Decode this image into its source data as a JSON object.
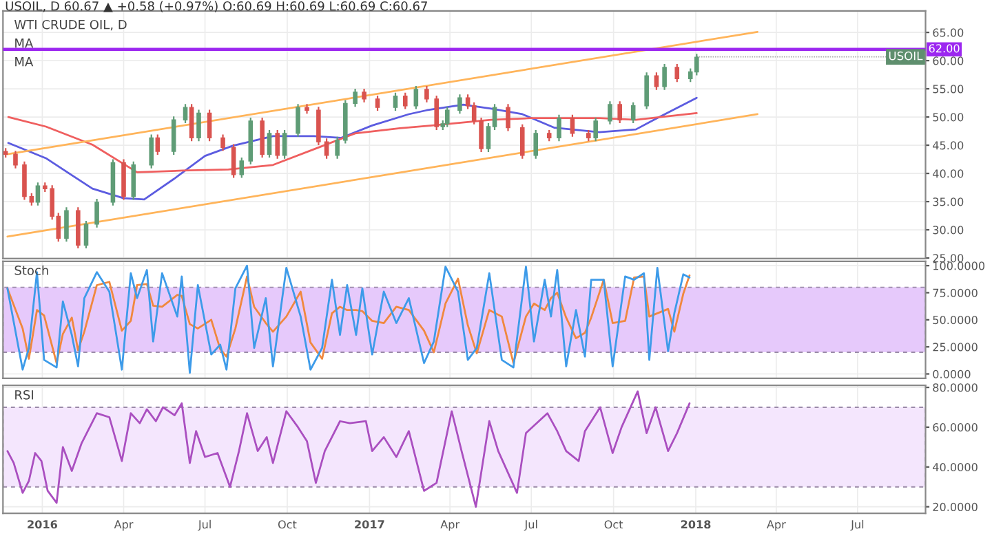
{
  "chart_data": [
    {
      "type": "candlestick",
      "title": "WTI CRUDE OIL, D",
      "subtitle": "USOIL, D 60.67 ▲ +0.58 (+0.97%) O:60.69 H:60.69 L:60.69 C:60.67",
      "grid": true,
      "tick_labels": "y",
      "colors": [
        "#d9534f",
        "#d9534f",
        "#d9534f",
        "#d9534f",
        "#5f9c76",
        "#d9534f",
        "#d9534f",
        "#d9534f",
        "#5f9c76",
        "#d9534f",
        "#5f9c76",
        "#5f9c76",
        "#5f9c76",
        "#d9534f",
        "#5f9c76",
        "#5f9c76",
        "#d9534f",
        "#5f9c76",
        "#5f9c76",
        "#d9534f",
        "#5f9c76",
        "#d9534f",
        "#d9534f",
        "#d9534f",
        "#5f9c76",
        "#5f9c76",
        "#d9534f",
        "#5f9c76",
        "#d9534f",
        "#5f9c76",
        "#5f9c76",
        "#d9534f",
        "#d9534f",
        "#d9534f",
        "#5f9c76",
        "#5f9c76",
        "#5f9c76",
        "#d9534f",
        "#d9534f",
        "#5f9c76",
        "#d9534f",
        "#5f9c76",
        "#d9534f",
        "#d9534f",
        "#5f9c76",
        "#5f9c76",
        "#5f9c76",
        "#d9534f",
        "#d9534f",
        "#d9534f",
        "#5f9c76",
        "#5f9c76",
        "#d9534f",
        "#d9534f",
        "#5f9c76",
        "#d9534f",
        "#5f9c76",
        "#d9534f",
        "#d9534f",
        "#5f9c76",
        "#5f9c76",
        "#d9534f",
        "#5f9c76",
        "#5f9c76",
        "#d9534f",
        "#5f9c76",
        "#d9534f",
        "#5f9c76",
        "#5f9c76"
      ],
      "xlim": [
        "2015-11-18",
        "2018-09-15"
      ],
      "xticks": [
        {
          "value": "2016-01-01",
          "label": null
        },
        {
          "value": "2016-04-01",
          "label": null
        },
        {
          "value": "2016-07-01",
          "label": null
        },
        {
          "value": "2016-10-01",
          "label": null
        },
        {
          "value": "2017-01-01",
          "label": null
        },
        {
          "value": "2017-04-01",
          "label": null
        },
        {
          "value": "2017-07-01",
          "label": null
        },
        {
          "value": "2017-10-01",
          "label": null
        },
        {
          "value": "2018-01-01",
          "label": null
        },
        {
          "value": "2018-04-01",
          "label": null
        },
        {
          "value": "2018-07-01",
          "label": null
        }
      ],
      "ylim": [
        24.9,
        68.8
      ],
      "yticks": [
        {
          "value": 25,
          "label": "25.00"
        },
        {
          "value": 30,
          "label": "30.00"
        },
        {
          "value": 35,
          "label": "35.00"
        },
        {
          "value": 40,
          "label": "40.00"
        },
        {
          "value": 45,
          "label": "45.00"
        },
        {
          "value": 50,
          "label": "50.00"
        },
        {
          "value": 55,
          "label": "55.00"
        },
        {
          "value": 60,
          "label": "60.00"
        },
        {
          "value": 65,
          "label": "65.00"
        }
      ],
      "x": [
        "2015-11-21",
        "2015-12-02",
        "2015-12-12",
        "2015-12-20",
        "2015-12-27",
        "2016-01-04",
        "2016-01-12",
        "2016-01-19",
        "2016-01-28",
        "2016-02-10",
        "2016-02-19",
        "2016-03-02",
        "2016-03-20",
        "2016-04-01",
        "2016-04-12",
        "2016-05-02",
        "2016-05-09",
        "2016-05-27",
        "2016-06-09",
        "2016-06-16",
        "2016-06-24",
        "2016-07-06",
        "2016-07-21",
        "2016-08-02",
        "2016-08-11",
        "2016-08-21",
        "2016-09-03",
        "2016-09-11",
        "2016-09-20",
        "2016-09-28",
        "2016-10-13",
        "2016-10-23",
        "2016-11-05",
        "2016-11-14",
        "2016-11-26",
        "2016-12-05",
        "2016-12-16",
        "2016-12-26",
        "2017-01-10",
        "2017-01-30",
        "2017-02-10",
        "2017-02-22",
        "2017-03-06",
        "2017-03-17",
        "2017-03-24",
        "2017-03-29",
        "2017-04-12",
        "2017-04-21",
        "2017-04-28",
        "2017-05-06",
        "2017-05-14",
        "2017-05-21",
        "2017-06-05",
        "2017-06-21",
        "2017-07-06",
        "2017-07-21",
        "2017-08-01",
        "2017-08-16",
        "2017-09-03",
        "2017-09-11",
        "2017-09-27",
        "2017-10-08",
        "2017-10-23",
        "2017-11-07",
        "2017-11-18",
        "2017-11-27",
        "2017-12-11",
        "2017-12-26",
        "2018-01-02"
      ],
      "ohlc": [
        [
          43.9,
          44.5,
          42.8,
          43.4
        ],
        [
          43.4,
          44.0,
          40.9,
          41.5
        ],
        [
          41.5,
          42.1,
          35.3,
          35.9
        ],
        [
          35.9,
          36.5,
          34.3,
          34.9
        ],
        [
          34.9,
          38.4,
          34.3,
          37.8
        ],
        [
          37.8,
          38.4,
          36.7,
          37.3
        ],
        [
          37.3,
          37.9,
          31.8,
          32.4
        ],
        [
          32.4,
          33.0,
          27.9,
          28.5
        ],
        [
          28.5,
          34.0,
          27.9,
          33.4
        ],
        [
          33.4,
          34.0,
          26.7,
          27.3
        ],
        [
          27.3,
          31.6,
          26.7,
          31.0
        ],
        [
          31.0,
          35.5,
          30.4,
          34.9
        ],
        [
          34.9,
          42.5,
          34.3,
          41.9
        ],
        [
          41.9,
          42.5,
          35.3,
          35.9
        ],
        [
          35.9,
          42.1,
          35.3,
          41.5
        ],
        [
          41.5,
          46.9,
          40.9,
          46.3
        ],
        [
          46.3,
          46.9,
          43.3,
          43.9
        ],
        [
          43.9,
          50.1,
          43.3,
          49.5
        ],
        [
          49.5,
          52.3,
          48.9,
          51.7
        ],
        [
          51.7,
          52.3,
          45.7,
          46.3
        ],
        [
          46.3,
          51.3,
          45.7,
          50.7
        ],
        [
          50.7,
          51.3,
          45.7,
          46.3
        ],
        [
          46.3,
          46.9,
          44.0,
          44.6
        ],
        [
          44.6,
          45.2,
          39.2,
          39.8
        ],
        [
          39.8,
          42.8,
          39.2,
          42.2
        ],
        [
          42.2,
          49.9,
          41.6,
          49.3
        ],
        [
          49.3,
          49.9,
          42.8,
          43.4
        ],
        [
          43.4,
          47.7,
          42.8,
          47.1
        ],
        [
          47.1,
          47.7,
          42.6,
          43.2
        ],
        [
          43.2,
          47.7,
          42.6,
          47.1
        ],
        [
          47.1,
          52.3,
          46.5,
          51.7
        ],
        [
          51.7,
          52.3,
          50.6,
          51.2
        ],
        [
          51.2,
          51.8,
          45.0,
          45.6
        ],
        [
          45.6,
          46.2,
          42.6,
          43.2
        ],
        [
          43.2,
          46.5,
          42.6,
          45.9
        ],
        [
          45.9,
          53.0,
          45.3,
          52.4
        ],
        [
          52.4,
          55.0,
          51.8,
          54.4
        ],
        [
          54.4,
          55.0,
          52.6,
          53.2
        ],
        [
          53.2,
          53.8,
          51.1,
          51.7
        ],
        [
          51.7,
          54.3,
          51.1,
          53.7
        ],
        [
          53.7,
          54.3,
          51.4,
          52.0
        ],
        [
          52.0,
          55.5,
          51.4,
          54.9
        ],
        [
          54.9,
          55.5,
          52.6,
          53.2
        ],
        [
          53.2,
          53.8,
          47.7,
          48.3
        ],
        [
          48.3,
          49.4,
          47.7,
          48.8
        ],
        [
          48.8,
          51.8,
          48.2,
          51.2
        ],
        [
          51.2,
          54.0,
          50.6,
          53.4
        ],
        [
          53.4,
          54.0,
          51.4,
          52.0
        ],
        [
          52.0,
          52.6,
          48.7,
          49.3
        ],
        [
          49.3,
          49.9,
          43.8,
          44.4
        ],
        [
          44.4,
          48.9,
          43.8,
          48.3
        ],
        [
          48.3,
          52.3,
          47.7,
          51.7
        ],
        [
          51.7,
          52.3,
          47.5,
          48.1
        ],
        [
          48.1,
          48.7,
          42.6,
          43.2
        ],
        [
          43.2,
          47.7,
          42.6,
          47.1
        ],
        [
          47.1,
          47.7,
          45.7,
          46.3
        ],
        [
          46.3,
          50.4,
          45.7,
          49.8
        ],
        [
          49.8,
          50.4,
          46.5,
          47.1
        ],
        [
          47.1,
          47.7,
          45.7,
          46.3
        ],
        [
          46.3,
          49.9,
          45.7,
          49.3
        ],
        [
          49.3,
          52.8,
          48.7,
          52.2
        ],
        [
          52.2,
          52.8,
          48.9,
          49.5
        ],
        [
          49.5,
          52.6,
          48.9,
          52.0
        ],
        [
          52.0,
          57.9,
          51.4,
          57.3
        ],
        [
          57.3,
          57.9,
          54.8,
          55.4
        ],
        [
          55.4,
          59.4,
          54.8,
          58.8
        ],
        [
          58.8,
          59.4,
          56.2,
          56.8
        ],
        [
          56.8,
          58.6,
          56.2,
          58.0
        ],
        [
          58.0,
          61.2,
          57.4,
          60.6
        ]
      ],
      "series": [
        {
          "type": "line",
          "color": "#5c5ce0",
          "x": [
            "2015-11-24",
            "2016-01-05",
            "2016-02-26",
            "2016-04-01",
            "2016-04-24",
            "2016-05-27",
            "2016-07-01",
            "2016-08-01",
            "2016-09-15",
            "2016-10-31",
            "2016-11-30",
            "2017-01-04",
            "2017-02-14",
            "2017-03-06",
            "2017-04-16",
            "2017-05-17",
            "2017-06-21",
            "2017-07-27",
            "2017-09-15",
            "2017-10-26",
            "2017-11-15",
            "2018-01-02"
          ],
          "values": [
            45.4,
            42.7,
            37.3,
            35.6,
            35.4,
            39.0,
            43.1,
            44.9,
            46.6,
            46.6,
            46.3,
            48.5,
            50.5,
            51.2,
            52.2,
            51.5,
            50.5,
            48.1,
            47.3,
            47.8,
            49.5,
            53.4
          ]
        },
        {
          "type": "line",
          "color": "#ef5f5f",
          "x": [
            "2015-11-24",
            "2016-01-05",
            "2016-02-26",
            "2016-04-16",
            "2016-06-06",
            "2016-07-27",
            "2016-09-15",
            "2016-11-05",
            "2016-12-16",
            "2017-02-04",
            "2017-03-12",
            "2017-05-17",
            "2017-07-01",
            "2017-09-15",
            "2017-10-26",
            "2018-01-02"
          ],
          "values": [
            50.0,
            48.3,
            45.1,
            40.2,
            40.5,
            40.7,
            41.5,
            44.6,
            47.1,
            48.0,
            48.5,
            49.5,
            49.8,
            49.8,
            49.5,
            50.7
          ]
        },
        {
          "type": "line",
          "color": "#ffb45a",
          "x": [
            "2015-11-23",
            "2018-03-11"
          ],
          "values": [
            43.4,
            65.1
          ]
        },
        {
          "type": "line",
          "color": "#ffb45a",
          "x": [
            "2015-11-23",
            "2018-03-11"
          ],
          "values": [
            28.8,
            50.5
          ]
        }
      ],
      "ref_lines": [
        {
          "axis": "y",
          "value": 62,
          "label": "62.00",
          "color": "#9c27f0"
        }
      ],
      "annotations": [
        "MA",
        "MA",
        {
          "text": "USOIL",
          "x": "2018-01-02",
          "y": 60.67
        }
      ]
    },
    {
      "type": "line",
      "title": "Stoch",
      "grid": true,
      "tick_labels": "y",
      "xlim": [
        "2015-11-18",
        "2018-09-15"
      ],
      "xticks": [
        {
          "value": "2016-01-01",
          "label": null
        },
        {
          "value": "2016-04-01",
          "label": null
        },
        {
          "value": "2016-07-01",
          "label": null
        },
        {
          "value": "2016-10-01",
          "label": null
        },
        {
          "value": "2017-01-01",
          "label": null
        },
        {
          "value": "2017-04-01",
          "label": null
        },
        {
          "value": "2017-07-01",
          "label": null
        },
        {
          "value": "2017-10-01",
          "label": null
        },
        {
          "value": "2018-01-01",
          "label": null
        },
        {
          "value": "2018-04-01",
          "label": null
        },
        {
          "value": "2018-07-01",
          "label": null
        }
      ],
      "ylim": [
        -4,
        104
      ],
      "yticks": [
        {
          "value": 0,
          "label": "0.0000"
        },
        {
          "value": 25,
          "label": "25.0000"
        },
        {
          "value": 50,
          "label": "50.0000"
        },
        {
          "value": 75,
          "label": "75.0000"
        },
        {
          "value": 100,
          "label": "100.0000"
        }
      ],
      "bands": [
        {
          "axis": "y",
          "from": 20,
          "to": 80,
          "color": "#e6c9fb"
        }
      ],
      "x": [
        "2015-11-23",
        "2015-12-10",
        "2015-12-17",
        "2015-12-26",
        "2016-01-03",
        "2016-01-17",
        "2016-01-24",
        "2016-02-03",
        "2016-02-10",
        "2016-02-17",
        "2016-03-02",
        "2016-03-16",
        "2016-03-30",
        "2016-04-09",
        "2016-04-16",
        "2016-04-27",
        "2016-05-04",
        "2016-05-14",
        "2016-05-31",
        "2016-06-05",
        "2016-06-14",
        "2016-06-23",
        "2016-07-08",
        "2016-07-18",
        "2016-07-25",
        "2016-08-04",
        "2016-08-17",
        "2016-08-25",
        "2016-09-07",
        "2016-09-15",
        "2016-09-30",
        "2016-10-16",
        "2016-10-27",
        "2016-11-09",
        "2016-11-20",
        "2016-11-29",
        "2016-12-07",
        "2016-12-17",
        "2016-12-24",
        "2017-01-04",
        "2017-01-17",
        "2017-01-31",
        "2017-02-14",
        "2017-03-03",
        "2017-03-14",
        "2017-03-27",
        "2017-04-10",
        "2017-04-21",
        "2017-05-01",
        "2017-05-15",
        "2017-05-29",
        "2017-06-11",
        "2017-06-25",
        "2017-07-04",
        "2017-07-16",
        "2017-07-23",
        "2017-07-30",
        "2017-08-09",
        "2017-08-20",
        "2017-08-30",
        "2017-09-06",
        "2017-09-20",
        "2017-09-30",
        "2017-10-14",
        "2017-10-24",
        "2017-11-04",
        "2017-11-10",
        "2017-11-19",
        "2017-12-01",
        "2017-12-08",
        "2017-12-18",
        "2017-12-25"
      ],
      "series": [
        {
          "color": "#f0883e",
          "values": [
            79,
            42,
            14,
            59,
            54,
            10,
            37,
            52,
            22,
            39,
            82,
            85,
            40,
            49,
            82,
            83,
            63,
            62,
            73,
            72,
            46,
            42,
            50,
            23,
            16,
            42,
            90,
            62,
            47,
            39,
            53,
            76,
            29,
            14,
            56,
            62,
            59,
            59,
            58,
            49,
            47,
            62,
            59,
            40,
            20,
            65,
            88,
            45,
            19,
            59,
            53,
            10,
            53,
            65,
            59,
            70,
            75,
            52,
            33,
            38,
            52,
            87,
            47,
            49,
            89,
            90,
            53,
            56,
            60,
            39,
            74,
            91
          ]
        },
        {
          "color": "#3d9be9",
          "values": [
            79,
            4,
            24,
            94,
            13,
            6,
            67,
            36,
            7,
            70,
            94,
            76,
            4,
            93,
            70,
            96,
            30,
            93,
            53,
            90,
            1,
            82,
            18,
            27,
            4,
            79,
            100,
            24,
            70,
            7,
            98,
            53,
            4,
            24,
            87,
            36,
            82,
            36,
            79,
            18,
            76,
            47,
            70,
            10,
            30,
            99,
            76,
            13,
            24,
            93,
            13,
            6,
            99,
            30,
            87,
            53,
            96,
            7,
            59,
            16,
            87,
            87,
            7,
            90,
            87,
            93,
            13,
            98,
            21,
            56,
            92,
            89
          ]
        }
      ]
    },
    {
      "type": "line",
      "title": "RSI",
      "grid": true,
      "xlim": [
        "2015-11-18",
        "2018-09-15"
      ],
      "xticks": [
        {
          "value": "2016-01-01",
          "label": "2016"
        },
        {
          "value": "2016-04-01",
          "label": "Apr"
        },
        {
          "value": "2016-07-01",
          "label": "Jul"
        },
        {
          "value": "2016-10-01",
          "label": "Oct"
        },
        {
          "value": "2017-01-01",
          "label": "2017"
        },
        {
          "value": "2017-04-01",
          "label": "Apr"
        },
        {
          "value": "2017-07-01",
          "label": "Jul"
        },
        {
          "value": "2017-10-01",
          "label": "Oct"
        },
        {
          "value": "2018-01-01",
          "label": "2018"
        },
        {
          "value": "2018-04-01",
          "label": "Apr"
        },
        {
          "value": "2018-07-01",
          "label": "Jul"
        }
      ],
      "ylim": [
        16.7,
        81
      ],
      "yticks": [
        {
          "value": 20,
          "label": "20.0000"
        },
        {
          "value": 40,
          "label": "40.0000"
        },
        {
          "value": 60,
          "label": "60.0000"
        },
        {
          "value": 80,
          "label": "80.0000"
        }
      ],
      "bands": [
        {
          "axis": "y",
          "from": 30,
          "to": 70,
          "color": "#f4e6fd"
        }
      ],
      "x": [
        "2015-11-23",
        "2015-11-30",
        "2015-12-10",
        "2015-12-17",
        "2015-12-24",
        "2015-12-31",
        "2016-01-07",
        "2016-01-17",
        "2016-01-24",
        "2016-02-03",
        "2016-02-14",
        "2016-03-02",
        "2016-03-16",
        "2016-03-30",
        "2016-04-09",
        "2016-04-19",
        "2016-04-27",
        "2016-05-07",
        "2016-05-15",
        "2016-05-28",
        "2016-06-05",
        "2016-06-14",
        "2016-06-21",
        "2016-07-01",
        "2016-07-15",
        "2016-07-29",
        "2016-08-08",
        "2016-08-17",
        "2016-08-29",
        "2016-09-08",
        "2016-09-15",
        "2016-09-30",
        "2016-10-13",
        "2016-10-23",
        "2016-11-02",
        "2016-11-12",
        "2016-11-29",
        "2016-12-10",
        "2016-12-28",
        "2017-01-04",
        "2017-01-17",
        "2017-01-31",
        "2017-02-14",
        "2017-03-03",
        "2017-03-17",
        "2017-04-03",
        "2017-04-14",
        "2017-04-30",
        "2017-05-15",
        "2017-05-25",
        "2017-06-15",
        "2017-06-25",
        "2017-07-19",
        "2017-07-30",
        "2017-08-09",
        "2017-08-23",
        "2017-08-30",
        "2017-09-16",
        "2017-09-30",
        "2017-10-10",
        "2017-10-28",
        "2017-11-07",
        "2017-11-17",
        "2017-12-01",
        "2017-12-11",
        "2017-12-25"
      ],
      "series": [
        {
          "color": "#aa4fc0",
          "values": [
            48,
            42,
            27,
            33,
            47,
            43,
            28,
            22,
            50,
            38,
            52,
            67,
            65,
            43,
            67,
            62,
            69,
            63,
            70,
            66,
            72,
            42,
            58,
            45,
            47,
            30,
            48,
            67,
            48,
            55,
            42,
            68,
            60,
            53,
            32,
            48,
            63,
            62,
            63,
            48,
            55,
            45,
            58,
            28,
            32,
            68,
            48,
            20,
            63,
            48,
            27,
            57,
            67,
            58,
            48,
            43,
            58,
            70,
            47,
            60,
            78,
            57,
            70,
            48,
            57,
            72
          ]
        }
      ]
    }
  ]
}
